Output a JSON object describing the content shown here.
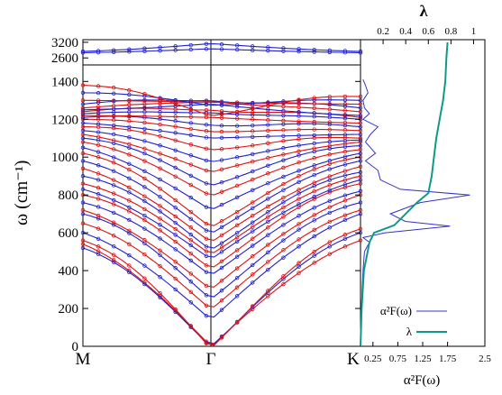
{
  "chart_data": [
    {
      "type": "line",
      "panel": "phonon-dispersion",
      "ylabel": "ω (cm⁻¹)",
      "ylim": [
        0,
        1430
      ],
      "break_ylim": [
        2400,
        3300
      ],
      "yticks": [
        0,
        200,
        400,
        600,
        800,
        1000,
        1200,
        1400
      ],
      "break_yticks": [
        2600,
        3200
      ],
      "x_points": [
        "M",
        "Γ",
        "K"
      ],
      "series_colors": {
        "calc_a": "#2222cc",
        "calc_b": "#dd1111"
      },
      "grid": false,
      "acoustic_branches": [
        {
          "M": 540,
          "Γ": 0,
          "K": 560
        },
        {
          "M": 520,
          "Γ": 0,
          "K": 600
        },
        {
          "M": 560,
          "Γ": 0,
          "K": 620
        }
      ],
      "optical_branches": [
        {
          "M": 600,
          "Γ": 140,
          "K": 700
        },
        {
          "M": 650,
          "Γ": 200,
          "K": 720
        },
        {
          "M": 700,
          "Γ": 260,
          "K": 760
        },
        {
          "M": 720,
          "Γ": 300,
          "K": 800
        },
        {
          "M": 760,
          "Γ": 380,
          "K": 820
        },
        {
          "M": 800,
          "Γ": 420,
          "K": 860
        },
        {
          "M": 830,
          "Γ": 460,
          "K": 880
        },
        {
          "M": 860,
          "Γ": 490,
          "K": 900
        },
        {
          "M": 900,
          "Γ": 520,
          "K": 920
        },
        {
          "M": 940,
          "Γ": 550,
          "K": 950
        },
        {
          "M": 980,
          "Γ": 600,
          "K": 980
        },
        {
          "M": 1020,
          "Γ": 640,
          "K": 1000
        },
        {
          "M": 1050,
          "Γ": 720,
          "K": 1020
        },
        {
          "M": 1080,
          "Γ": 800,
          "K": 1040
        },
        {
          "M": 1100,
          "Γ": 860,
          "K": 1060
        },
        {
          "M": 1120,
          "Γ": 920,
          "K": 1080
        },
        {
          "M": 1140,
          "Γ": 980,
          "K": 1090
        },
        {
          "M": 1160,
          "Γ": 1050,
          "K": 1100
        },
        {
          "M": 1180,
          "Γ": 1100,
          "K": 1120
        },
        {
          "M": 1200,
          "Γ": 1140,
          "K": 1140
        },
        {
          "M": 1210,
          "Γ": 1180,
          "K": 1160
        },
        {
          "M": 1220,
          "Γ": 1210,
          "K": 1180
        },
        {
          "M": 1230,
          "Γ": 1240,
          "K": 1200
        },
        {
          "M": 1240,
          "Γ": 1260,
          "K": 1210
        },
        {
          "M": 1250,
          "Γ": 1280,
          "K": 1220
        },
        {
          "M": 1260,
          "Γ": 1300,
          "K": 1240
        },
        {
          "M": 1280,
          "Γ": 1310,
          "K": 1260
        },
        {
          "M": 1300,
          "Γ": 1290,
          "K": 1280
        },
        {
          "M": 1340,
          "Γ": 1280,
          "K": 1300
        },
        {
          "M": 1380,
          "Γ": 1230,
          "K": 1320
        }
      ],
      "high_branches": [
        {
          "M": 2850,
          "Γ": 3150,
          "K": 2850
        },
        {
          "M": 2800,
          "Γ": 2950,
          "K": 2800
        }
      ]
    },
    {
      "type": "line",
      "panel": "eliashberg",
      "xlabel": "α²F(ω)",
      "top_xlabel": "λ",
      "xlim": [
        0,
        2.5
      ],
      "xticks": [
        0.25,
        0.75,
        1.25,
        1.75,
        2.5
      ],
      "xtick_labels": [
        "0.25",
        "0.75",
        "1.25",
        "1.75",
        "2.5"
      ],
      "top_xlim": [
        0,
        1.1
      ],
      "top_xticks": [
        0.2,
        0.4,
        0.6,
        0.8,
        1
      ],
      "top_xtick_labels": [
        "0.2",
        "0.4",
        "0.6",
        "0.8",
        "1"
      ],
      "legend_position": "bottom-right",
      "series": [
        {
          "name": "α²F(ω)",
          "color": "#3333cc",
          "x_axis": "bottom",
          "points": [
            [
              0,
              0
            ],
            [
              0.01,
              100
            ],
            [
              0.02,
              200
            ],
            [
              0.03,
              300
            ],
            [
              0.05,
              400
            ],
            [
              0.08,
              500
            ],
            [
              0.18,
              550
            ],
            [
              0.05,
              575
            ],
            [
              0.5,
              600
            ],
            [
              1.8,
              635
            ],
            [
              0.9,
              660
            ],
            [
              0.6,
              700
            ],
            [
              1.2,
              760
            ],
            [
              2.2,
              800
            ],
            [
              0.8,
              830
            ],
            [
              0.4,
              880
            ],
            [
              0.35,
              930
            ],
            [
              0.1,
              980
            ],
            [
              0.3,
              1020
            ],
            [
              0.1,
              1080
            ],
            [
              0.2,
              1120
            ],
            [
              0.35,
              1160
            ],
            [
              0.05,
              1200
            ],
            [
              0.18,
              1230
            ],
            [
              0.08,
              1260
            ],
            [
              0.05,
              1300
            ],
            [
              0.15,
              1340
            ],
            [
              0.1,
              1380
            ],
            [
              0.05,
              1410
            ]
          ]
        },
        {
          "name": "λ",
          "color": "#119988",
          "x_axis": "top",
          "points": [
            [
              0,
              0
            ],
            [
              0.01,
              200
            ],
            [
              0.03,
              400
            ],
            [
              0.08,
              550
            ],
            [
              0.12,
              600
            ],
            [
              0.3,
              640
            ],
            [
              0.4,
              700
            ],
            [
              0.5,
              760
            ],
            [
              0.6,
              810
            ],
            [
              0.63,
              900
            ],
            [
              0.65,
              1000
            ],
            [
              0.67,
              1100
            ],
            [
              0.7,
              1200
            ],
            [
              0.73,
              1300
            ],
            [
              0.75,
              1400
            ],
            [
              0.76,
              2600
            ],
            [
              0.77,
              3200
            ]
          ]
        }
      ]
    }
  ]
}
